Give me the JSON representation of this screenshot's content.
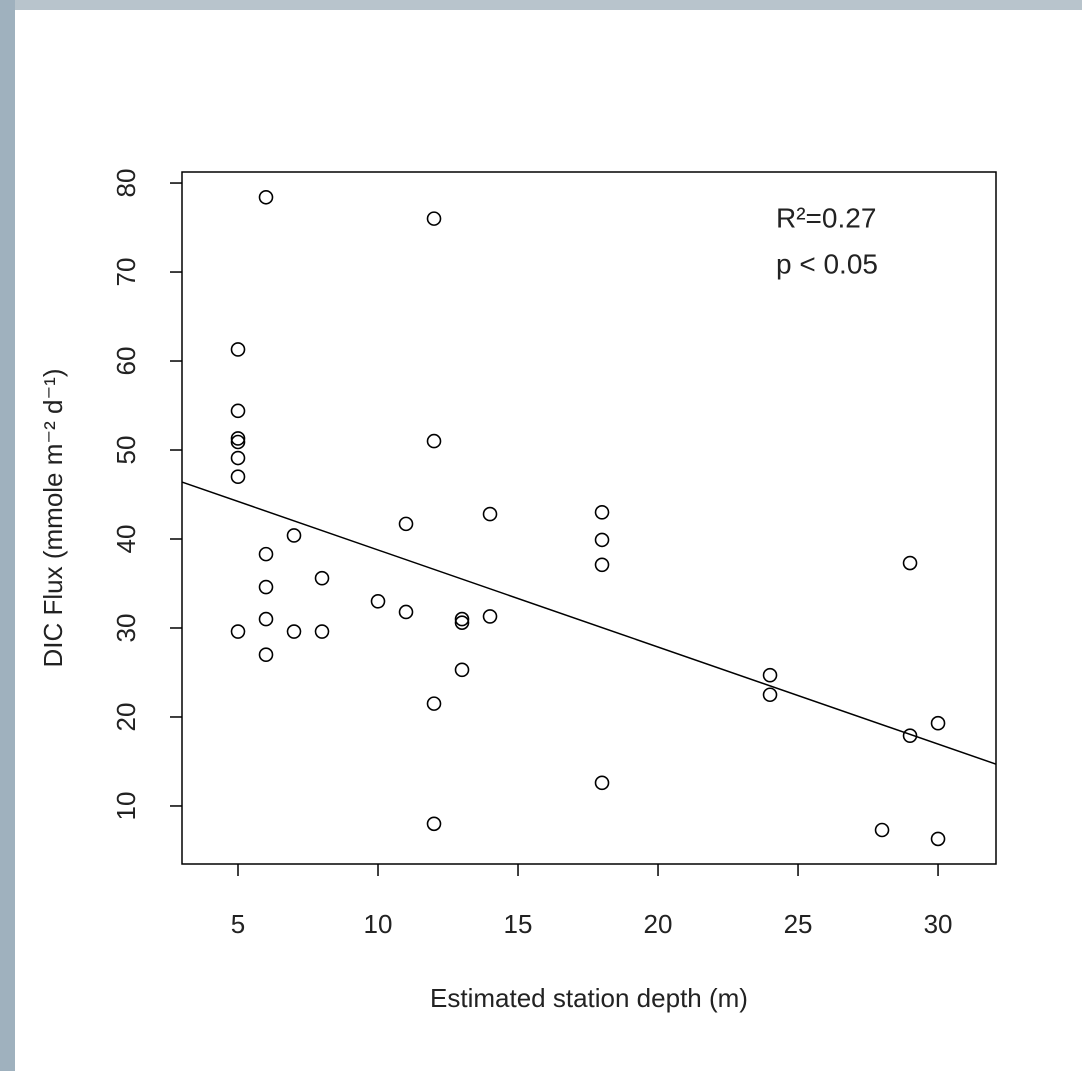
{
  "chart_data": {
    "type": "scatter",
    "x_label": "Estimated station depth (m)",
    "y_label": "DIC Flux (mmole m⁻² d⁻¹)",
    "annotations": [
      "R²=0.27",
      "p < 0.05"
    ],
    "x": [
      6,
      12,
      5,
      5,
      5,
      5,
      12,
      5,
      5,
      11,
      14,
      18,
      18,
      18,
      7,
      6,
      6,
      8,
      29,
      10,
      11,
      5,
      6,
      7,
      8,
      13,
      13,
      14,
      6,
      13,
      24,
      24,
      12,
      30,
      29,
      18,
      12,
      28,
      30
    ],
    "y": [
      78.4,
      76.0,
      61.3,
      54.4,
      51.3,
      50.9,
      51.0,
      49.1,
      47.0,
      41.7,
      42.8,
      43.0,
      39.9,
      37.1,
      40.4,
      38.3,
      34.6,
      35.6,
      37.3,
      33.0,
      31.8,
      29.6,
      31.0,
      29.6,
      29.6,
      31.0,
      30.6,
      31.3,
      27.0,
      25.3,
      24.7,
      22.5,
      21.5,
      19.3,
      17.9,
      12.6,
      8.0,
      7.3,
      6.3
    ],
    "color": "#000000",
    "fit": {
      "x": [
        3,
        32.07
      ],
      "y": [
        46.4,
        14.7
      ],
      "color": "#000000"
    },
    "xlim": [
      3,
      32.07
    ],
    "ylim": [
      3.48,
      81.24
    ],
    "xticks": [
      5,
      10,
      15,
      20,
      25,
      30
    ],
    "yticks": [
      10,
      20,
      30,
      40,
      50,
      60,
      70,
      80
    ],
    "grid": false
  }
}
